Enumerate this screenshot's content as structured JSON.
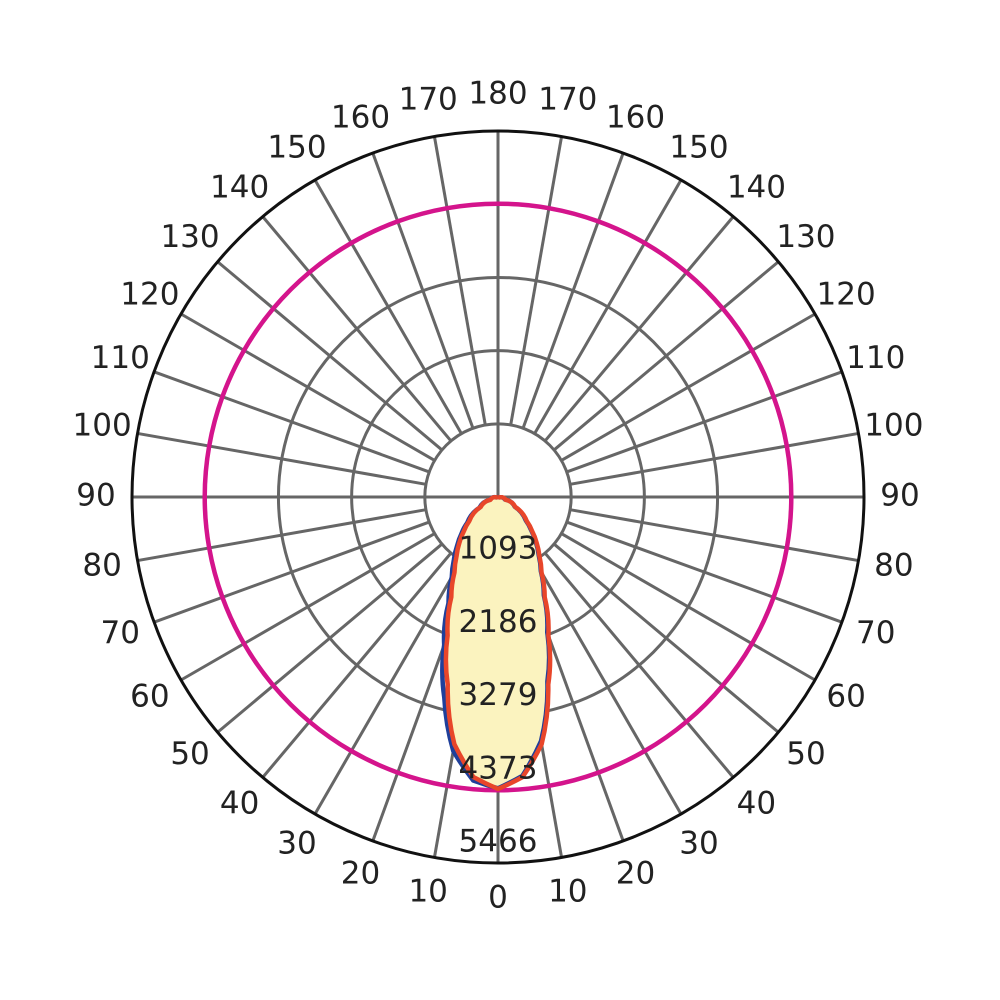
{
  "chart_data": {
    "type": "polar",
    "rlim": [
      0,
      5466
    ],
    "rticks": [
      1093,
      2186,
      3279,
      4373,
      5466
    ],
    "angleticks": [
      0,
      10,
      20,
      30,
      40,
      50,
      60,
      70,
      80,
      90,
      100,
      110,
      120,
      130,
      140,
      150,
      160,
      170,
      180
    ],
    "grid_color": "#666666",
    "outer_color": "#111111",
    "series": [
      {
        "color": "#d4148c",
        "x": [
          -180,
          -170,
          -160,
          -150,
          -140,
          -130,
          -120,
          -110,
          -100,
          -90,
          -80,
          -70,
          -60,
          -50,
          -40,
          -30,
          -20,
          -10,
          0,
          10,
          20,
          30,
          40,
          50,
          60,
          70,
          80,
          90,
          100,
          110,
          120,
          130,
          140,
          150,
          160,
          170,
          180
        ],
        "values": [
          4380,
          4380,
          4380,
          4380,
          4380,
          4380,
          4380,
          4380,
          4380,
          4380,
          4380,
          4380,
          4380,
          4380,
          4380,
          4380,
          4380,
          4380,
          4380,
          4380,
          4380,
          4380,
          4380,
          4380,
          4380,
          4380,
          4380,
          4380,
          4380,
          4380,
          4380,
          4380,
          4380,
          4380,
          4380,
          4380,
          4380
        ]
      },
      {
        "color": "#1f3f9a",
        "x": [
          -90,
          -80,
          -70,
          -60,
          -50,
          -45,
          -40,
          -35,
          -30,
          -25,
          -20,
          -15,
          -10,
          -5,
          0,
          5,
          10,
          15,
          20,
          25,
          30,
          35,
          40,
          45,
          50,
          60,
          70,
          80,
          90
        ],
        "values": [
          0,
          30,
          130,
          320,
          600,
          770,
          950,
          1150,
          1380,
          1750,
          2350,
          3100,
          3850,
          4250,
          4350,
          4180,
          3700,
          2850,
          2150,
          1620,
          1280,
          1060,
          880,
          700,
          540,
          290,
          110,
          30,
          0
        ]
      },
      {
        "color": "#e8462a",
        "fill": "#fbf3bf",
        "x": [
          -90,
          -80,
          -70,
          -60,
          -50,
          -45,
          -40,
          -35,
          -30,
          -25,
          -20,
          -15,
          -10,
          -5,
          0,
          5,
          10,
          15,
          20,
          25,
          30,
          35,
          40,
          45,
          50,
          60,
          70,
          80,
          90
        ],
        "values": [
          0,
          30,
          120,
          300,
          560,
          720,
          900,
          1080,
          1300,
          1650,
          2200,
          2900,
          3750,
          4200,
          4360,
          4200,
          3750,
          2900,
          2200,
          1650,
          1300,
          1080,
          900,
          720,
          560,
          300,
          120,
          30,
          0
        ]
      }
    ]
  }
}
